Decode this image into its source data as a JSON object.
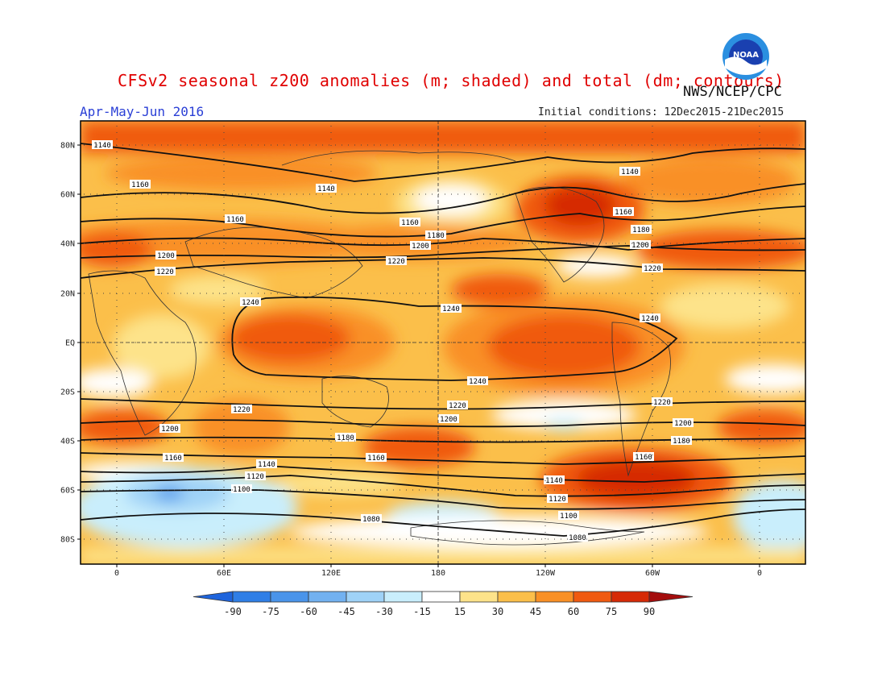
{
  "header": {
    "title": "CFSv2 seasonal z200 anomalies (m; shaded) and total (dm; contours)",
    "agency": "NWS/NCEP/CPC",
    "period": "Apr-May-Jun 2016",
    "initial_conditions": "Initial conditions: 12Dec2015-21Dec2015",
    "logo_text": "NOAA"
  },
  "map": {
    "lat_labels": [
      "80N",
      "60N",
      "40N",
      "20N",
      "EQ",
      "20S",
      "40S",
      "60S",
      "80S"
    ],
    "lon_labels": [
      "0",
      "60E",
      "120E",
      "180",
      "120W",
      "60W",
      "0"
    ],
    "contour_labels": [
      "1080",
      "1100",
      "1120",
      "1140",
      "1160",
      "1180",
      "1200",
      "1220",
      "1240"
    ]
  },
  "colorbar": {
    "ticks": [
      "-90",
      "-75",
      "-60",
      "-45",
      "-30",
      "-15",
      "15",
      "30",
      "45",
      "60",
      "75",
      "90"
    ],
    "colors": {
      "lt-90": "#1e64dc",
      "n90_75": "#2f7ee6",
      "n75_60": "#4a94ea",
      "n60_45": "#72b1f0",
      "n45_30": "#9fd2f7",
      "n30_15": "#c9eefc",
      "n15_15": "#ffffff",
      "p15_30": "#fde38a",
      "p30_45": "#fbbf4a",
      "p45_60": "#f99025",
      "p60_75": "#f05a10",
      "p75_90": "#d62a06",
      "gt90": "#a40d0d"
    }
  }
}
